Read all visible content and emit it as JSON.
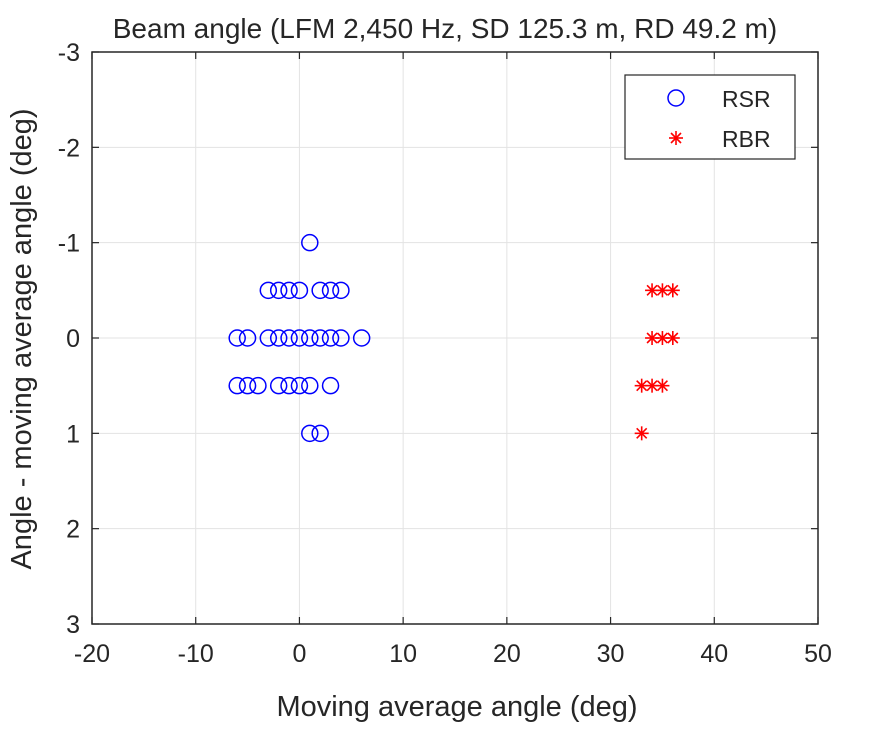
{
  "chart_data": {
    "type": "scatter",
    "title": "Beam angle (LFM 2,450 Hz, SD 125.3 m, RD 49.2 m)",
    "xlabel": "Moving average angle (deg)",
    "ylabel": "Angle - moving average angle (deg)",
    "xlim": [
      -20,
      50
    ],
    "ylim": [
      -3,
      3
    ],
    "y_reversed": true,
    "grid": true,
    "legend_position": "top-right",
    "xticks": [
      "-20",
      "-10",
      "0",
      "10",
      "20",
      "30",
      "40",
      "50"
    ],
    "xtick_values": [
      -20,
      -10,
      0,
      10,
      20,
      30,
      40,
      50
    ],
    "yticks": [
      "-3",
      "-2",
      "-1",
      "0",
      "1",
      "2",
      "3"
    ],
    "ytick_values": [
      -3,
      -2,
      -1,
      0,
      1,
      2,
      3
    ],
    "series": [
      {
        "name": "RSR",
        "marker": "circle",
        "color": "#0000ff",
        "points": [
          [
            1,
            -1
          ],
          [
            -3,
            -0.5
          ],
          [
            -2,
            -0.5
          ],
          [
            -1,
            -0.5
          ],
          [
            0,
            -0.5
          ],
          [
            2,
            -0.5
          ],
          [
            3,
            -0.5
          ],
          [
            4,
            -0.5
          ],
          [
            -6,
            0
          ],
          [
            -5,
            0
          ],
          [
            -3,
            0
          ],
          [
            -2,
            0
          ],
          [
            -1,
            0
          ],
          [
            0,
            0
          ],
          [
            1,
            0
          ],
          [
            2,
            0
          ],
          [
            3,
            0
          ],
          [
            4,
            0
          ],
          [
            6,
            0
          ],
          [
            -6,
            0.5
          ],
          [
            -5,
            0.5
          ],
          [
            -4,
            0.5
          ],
          [
            -2,
            0.5
          ],
          [
            -1,
            0.5
          ],
          [
            0,
            0.5
          ],
          [
            1,
            0.5
          ],
          [
            3,
            0.5
          ],
          [
            1,
            1
          ],
          [
            2,
            1
          ]
        ]
      },
      {
        "name": "RBR",
        "marker": "asterisk",
        "color": "#ff0000",
        "points": [
          [
            34,
            -0.5
          ],
          [
            35,
            -0.5
          ],
          [
            36,
            -0.5
          ],
          [
            34,
            0
          ],
          [
            35,
            0
          ],
          [
            36,
            0
          ],
          [
            33,
            0.5
          ],
          [
            34,
            0.5
          ],
          [
            35,
            0.5
          ],
          [
            33,
            1
          ]
        ]
      }
    ]
  }
}
